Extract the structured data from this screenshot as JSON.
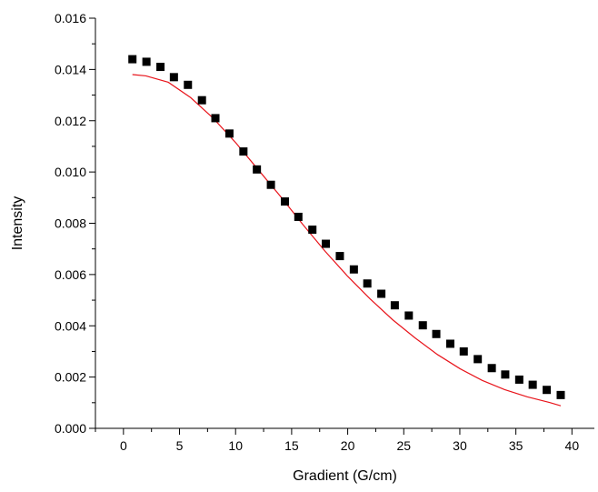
{
  "chart_data": {
    "type": "scatter",
    "title": "",
    "xlabel": "Gradient (G/cm)",
    "ylabel": "Intensity",
    "xlim": [
      -2.5,
      42
    ],
    "ylim": [
      0,
      0.016
    ],
    "x_ticks": [
      0,
      5,
      10,
      15,
      20,
      25,
      30,
      35,
      40
    ],
    "x_tick_labels": [
      "0",
      "5",
      "10",
      "15",
      "20",
      "25",
      "30",
      "35",
      "40"
    ],
    "y_ticks": [
      0,
      0.002,
      0.004,
      0.006,
      0.008,
      0.01,
      0.012,
      0.014,
      0.016
    ],
    "y_tick_labels": [
      "0.000",
      "0.002",
      "0.004",
      "0.006",
      "0.008",
      "0.010",
      "0.012",
      "0.014",
      "0.016"
    ],
    "grid": false,
    "colors": {
      "points": "#000000",
      "fit": "#e8141b"
    },
    "series": [
      {
        "type": "scatter",
        "marker": "square",
        "x": [
          0.8,
          2.05,
          3.3,
          4.5,
          5.75,
          7.0,
          8.2,
          9.45,
          10.7,
          11.9,
          13.15,
          14.4,
          15.6,
          16.85,
          18.05,
          19.3,
          20.55,
          21.75,
          23.0,
          24.2,
          25.45,
          26.7,
          27.9,
          29.15,
          30.35,
          31.6,
          32.85,
          34.05,
          35.3,
          36.5,
          37.75,
          39.0
        ],
        "y": [
          0.0144,
          0.0143,
          0.0141,
          0.0137,
          0.0134,
          0.0128,
          0.0121,
          0.0115,
          0.0108,
          0.0101,
          0.0095,
          0.00885,
          0.00825,
          0.00775,
          0.0072,
          0.00672,
          0.0062,
          0.00565,
          0.00525,
          0.0048,
          0.0044,
          0.00402,
          0.00368,
          0.0033,
          0.003,
          0.0027,
          0.00235,
          0.0021,
          0.0019,
          0.0017,
          0.0015,
          0.0013
        ]
      },
      {
        "type": "line",
        "x": [
          0.8,
          2,
          4,
          6,
          8,
          10,
          12,
          14,
          16,
          18,
          20,
          22,
          24,
          26,
          28,
          30,
          32,
          34,
          36,
          38,
          39
        ],
        "y": [
          0.0138,
          0.01375,
          0.0135,
          0.0129,
          0.0121,
          0.01115,
          0.0101,
          0.00905,
          0.00795,
          0.0069,
          0.00593,
          0.00505,
          0.00424,
          0.00353,
          0.00288,
          0.00233,
          0.00187,
          0.00151,
          0.00123,
          0.00101,
          0.00088
        ]
      }
    ]
  }
}
